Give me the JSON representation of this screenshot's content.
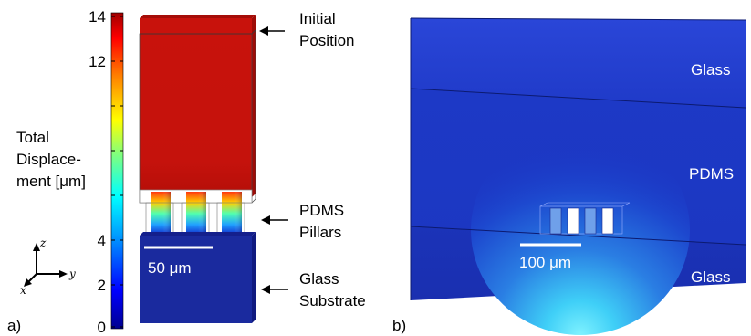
{
  "panel_a": {
    "label": "a)",
    "colorbar": {
      "title_lines": [
        "Total",
        "Displace-",
        "ment [μm]"
      ],
      "ticks": [
        "14",
        "12",
        "4",
        "2",
        "0"
      ]
    },
    "labels": {
      "initial_position": [
        "Initial",
        "Position"
      ],
      "pdms_pillars": [
        "PDMS",
        "Pillars"
      ],
      "glass_substrate": [
        "Glass",
        "Substrate"
      ]
    },
    "scale_bar": "50 μm",
    "axes": {
      "z": "z",
      "y": "y",
      "x": "x"
    }
  },
  "panel_b": {
    "label": "b)",
    "layers": {
      "top": "Glass",
      "middle": "PDMS",
      "bottom": "Glass"
    },
    "scale_bar": "100 μm"
  },
  "colors": {
    "displaced_red": "#c8130d",
    "glass_blue": "#1a2fb0",
    "pdms_blue": "#1c39c8",
    "glow_cyan": "#52e0f5"
  }
}
